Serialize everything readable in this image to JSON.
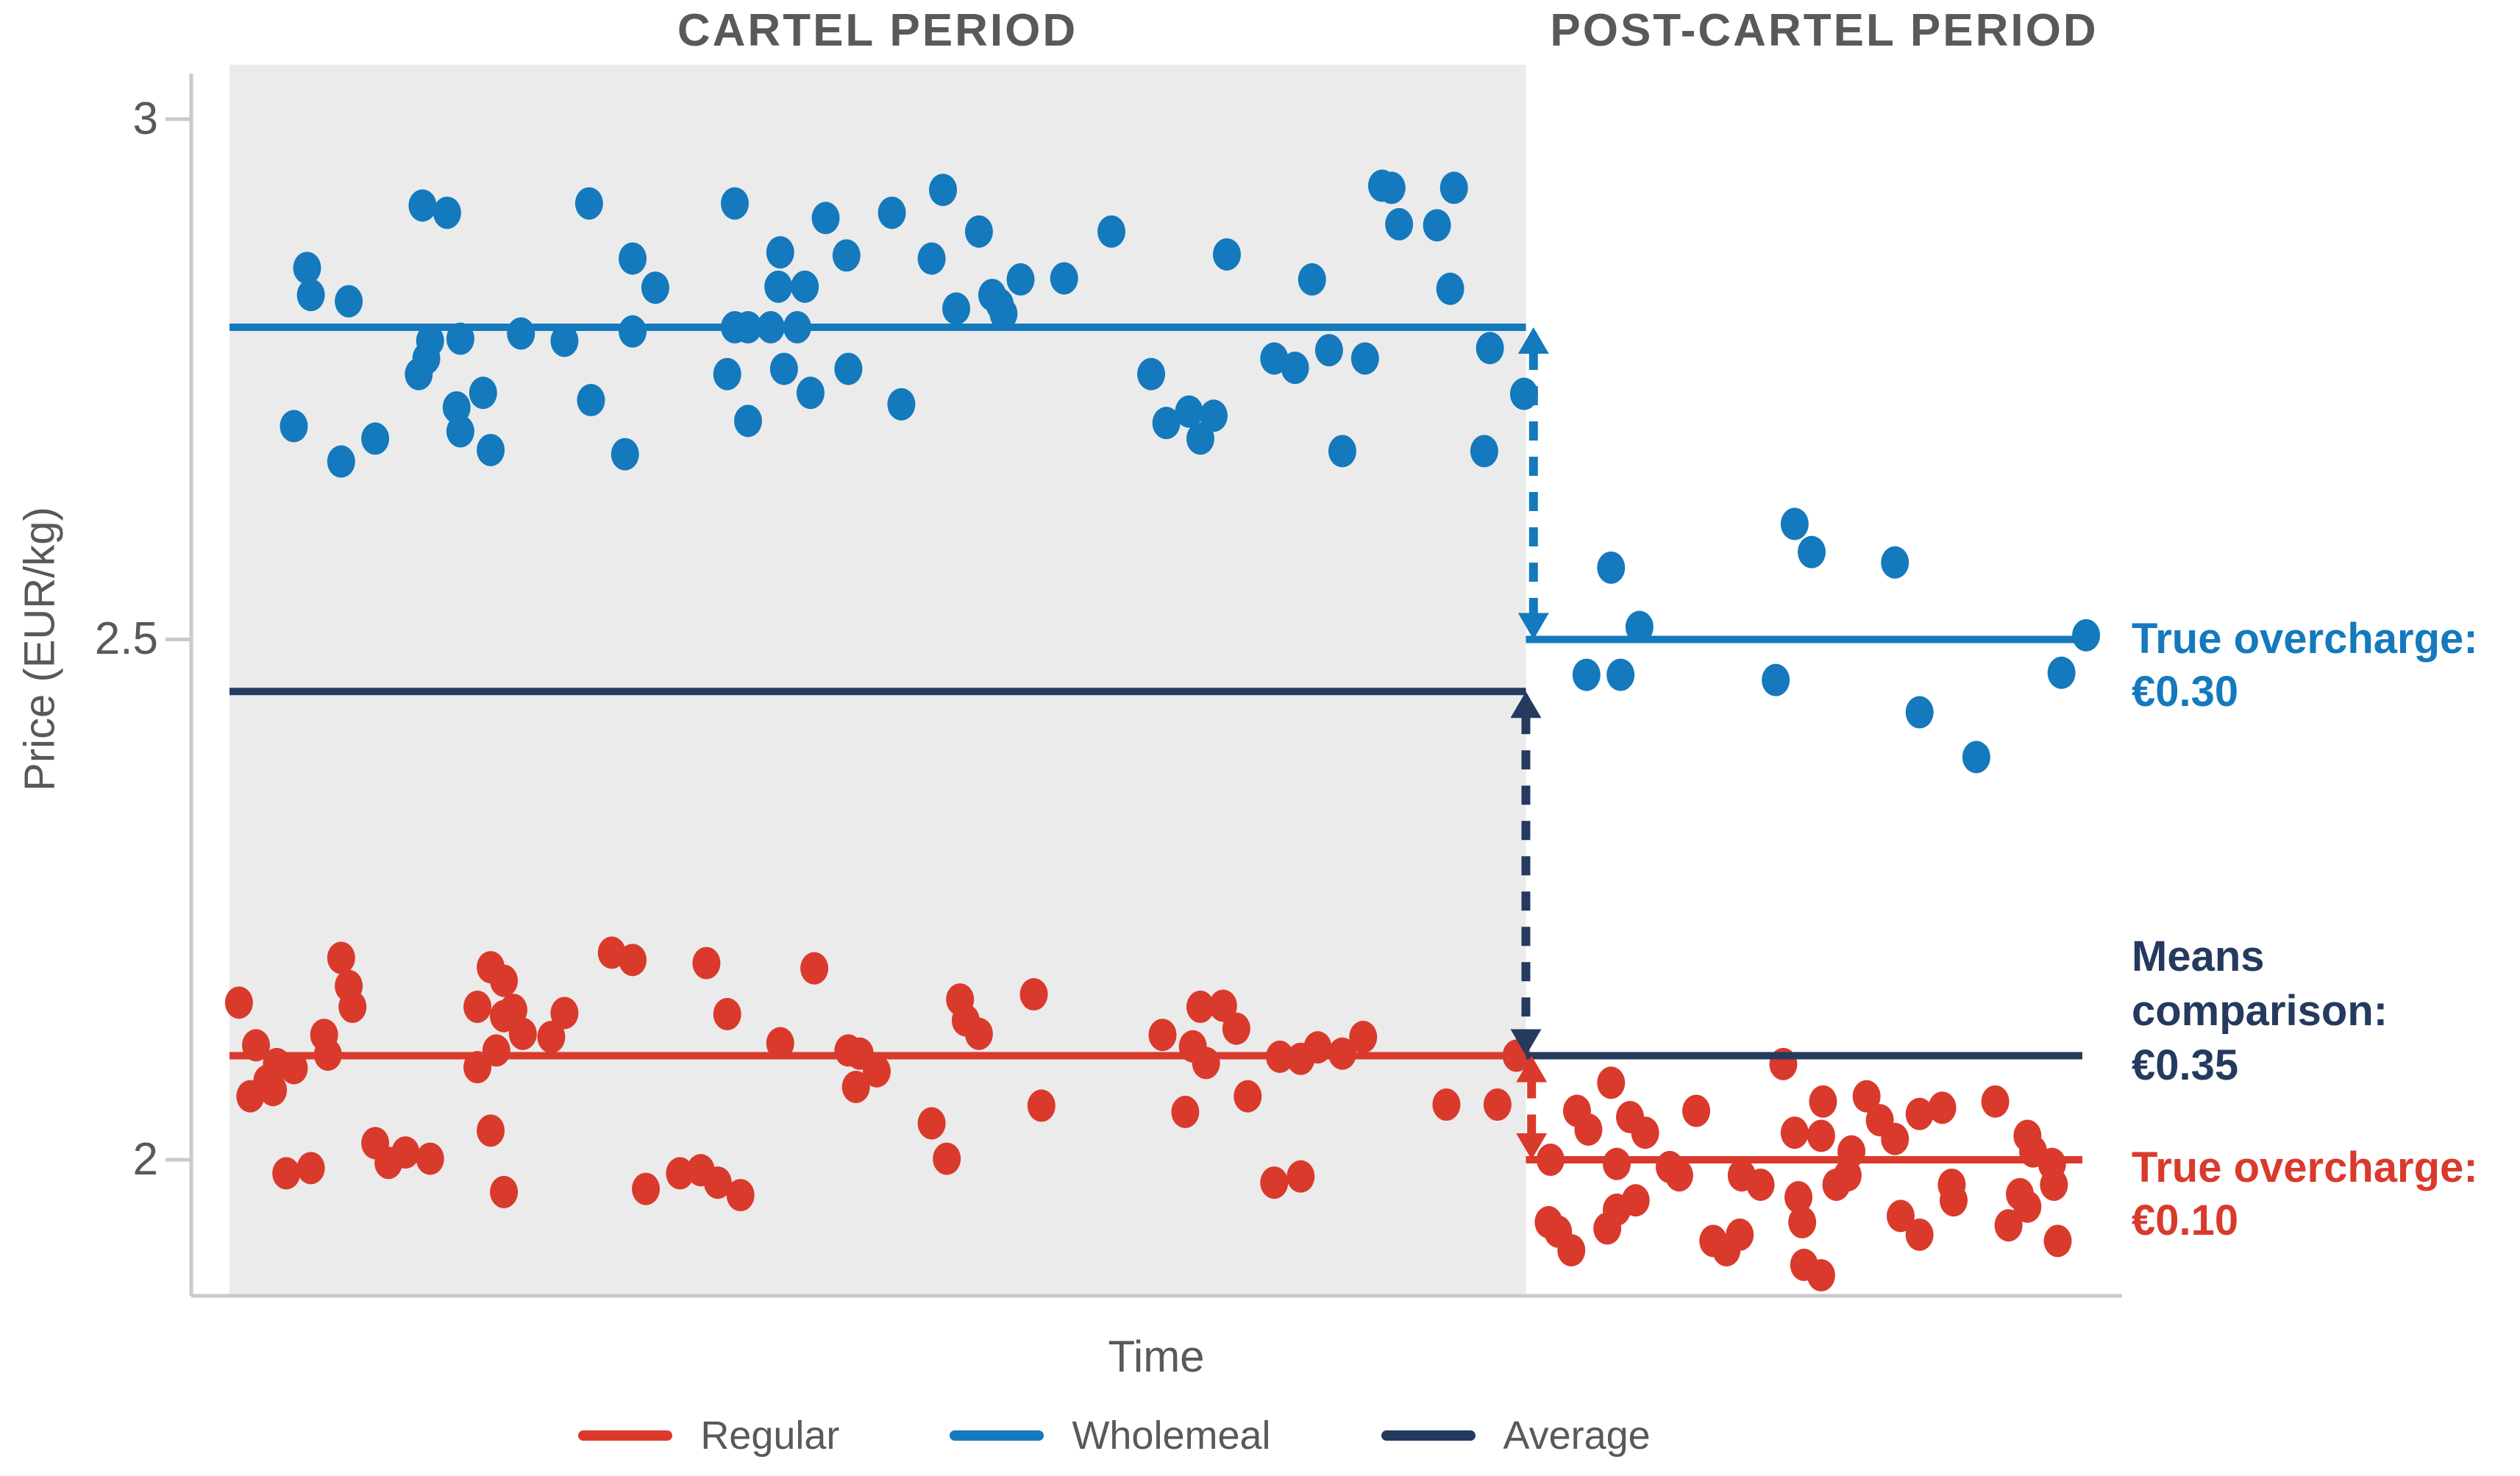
{
  "axes": {
    "x_label": "Time",
    "y_label": "Price (EUR/kg)"
  },
  "annotations": {
    "wholemeal": {
      "lines": [
        "True overcharge:",
        "€0.30"
      ],
      "color": "#1479bd"
    },
    "average": {
      "lines": [
        "Means",
        "comparison:",
        "€0.35"
      ],
      "color": "#243a5e"
    },
    "regular": {
      "lines": [
        "True overcharge:",
        "€0.10"
      ],
      "color": "#d93a2c"
    }
  },
  "legend": {
    "items": [
      {
        "label": "Regular",
        "color": "#d93a2c"
      },
      {
        "label": "Wholemeal",
        "color": "#1479bd"
      },
      {
        "label": "Average",
        "color": "#243a5e"
      }
    ]
  },
  "colors": {
    "regular": "#d93a2c",
    "wholemeal": "#1479bd",
    "average": "#243a5e",
    "plot_shading": "#ebebeb",
    "axis": "#c9cacb",
    "text_gray": "#58595b",
    "background": "#ffffff"
  },
  "chart_data": {
    "type": "scatter",
    "xlabel": "Time",
    "ylabel": "Price (EUR/kg)",
    "xlim": [
      0,
      100
    ],
    "ylim": [
      1.87,
      3.05
    ],
    "y_ticks": [
      3,
      2.5,
      2
    ],
    "y_tick_labels": [
      "3",
      "2.5",
      "2"
    ],
    "grid": false,
    "legend_position": "bottom",
    "regions": [
      {
        "name": "CARTEL PERIOD",
        "x_start": 0,
        "x_end": 68.5,
        "shaded": true
      },
      {
        "name": "POST-CARTEL PERIOD",
        "x_start": 68.5,
        "x_end": 100,
        "shaded": false
      }
    ],
    "series": [
      {
        "id": "wholemeal-cartel",
        "name": "Wholemeal",
        "period": "cartel",
        "color": "#1479bd",
        "mean": 2.8,
        "line_span": [
          0,
          68.5
        ],
        "points": [
          [
            10.2,
            2.917
          ],
          [
            11.5,
            2.91
          ],
          [
            19.0,
            2.919
          ],
          [
            26.7,
            2.919
          ],
          [
            31.5,
            2.905
          ],
          [
            4.1,
            2.857
          ],
          [
            21.3,
            2.866
          ],
          [
            22.5,
            2.838
          ],
          [
            29.1,
            2.872
          ],
          [
            29.0,
            2.839
          ],
          [
            30.4,
            2.839
          ],
          [
            32.6,
            2.869
          ],
          [
            4.3,
            2.831
          ],
          [
            6.3,
            2.825
          ],
          [
            26.7,
            2.8
          ],
          [
            27.4,
            2.8
          ],
          [
            28.6,
            2.8
          ],
          [
            30.0,
            2.8
          ],
          [
            10.6,
            2.787
          ],
          [
            12.2,
            2.789
          ],
          [
            15.4,
            2.794
          ],
          [
            17.7,
            2.787
          ],
          [
            21.3,
            2.796
          ],
          [
            10.4,
            2.77
          ],
          [
            10.0,
            2.755
          ],
          [
            13.4,
            2.737
          ],
          [
            12.0,
            2.723
          ],
          [
            12.2,
            2.7
          ],
          [
            3.4,
            2.705
          ],
          [
            7.7,
            2.693
          ],
          [
            5.9,
            2.671
          ],
          [
            13.8,
            2.682
          ],
          [
            19.1,
            2.73
          ],
          [
            20.9,
            2.678
          ],
          [
            26.3,
            2.755
          ],
          [
            27.4,
            2.71
          ],
          [
            29.3,
            2.76
          ],
          [
            30.7,
            2.737
          ],
          [
            32.7,
            2.76
          ],
          [
            37.7,
            2.932
          ],
          [
            35.0,
            2.91
          ],
          [
            39.6,
            2.892
          ],
          [
            37.1,
            2.866
          ],
          [
            46.6,
            2.892
          ],
          [
            41.8,
            2.846
          ],
          [
            44.1,
            2.847
          ],
          [
            40.3,
            2.831
          ],
          [
            38.4,
            2.818
          ],
          [
            40.7,
            2.822
          ],
          [
            40.9,
            2.813
          ],
          [
            52.7,
            2.87
          ],
          [
            57.2,
            2.846
          ],
          [
            60.9,
            2.936
          ],
          [
            61.4,
            2.934
          ],
          [
            64.7,
            2.934
          ],
          [
            61.8,
            2.899
          ],
          [
            63.8,
            2.898
          ],
          [
            64.5,
            2.837
          ],
          [
            55.2,
            2.77
          ],
          [
            56.3,
            2.761
          ],
          [
            58.1,
            2.778
          ],
          [
            60.0,
            2.77
          ],
          [
            66.6,
            2.78
          ],
          [
            68.4,
            2.736
          ],
          [
            48.7,
            2.755
          ],
          [
            35.5,
            2.726
          ],
          [
            49.5,
            2.708
          ],
          [
            50.7,
            2.719
          ],
          [
            51.3,
            2.693
          ],
          [
            52.0,
            2.715
          ],
          [
            58.8,
            2.681
          ],
          [
            66.3,
            2.681
          ]
        ]
      },
      {
        "id": "wholemeal-post",
        "name": "Wholemeal",
        "period": "post",
        "color": "#1479bd",
        "mean": 2.5,
        "line_span": [
          68.5,
          98.1
        ],
        "points": [
          [
            82.7,
            2.611
          ],
          [
            83.6,
            2.584
          ],
          [
            88.0,
            2.574
          ],
          [
            73.0,
            2.569
          ],
          [
            74.5,
            2.512
          ],
          [
            71.7,
            2.466
          ],
          [
            73.5,
            2.466
          ],
          [
            81.7,
            2.461
          ],
          [
            89.3,
            2.43
          ],
          [
            96.8,
            2.468
          ],
          [
            98.1,
            2.504
          ],
          [
            92.3,
            2.387
          ]
        ]
      },
      {
        "id": "regular-cartel",
        "name": "Regular",
        "period": "cartel",
        "color": "#d93a2c",
        "mean": 2.1,
        "line_span": [
          0,
          68.5
        ],
        "points": [
          [
            0.5,
            2.151
          ],
          [
            5.9,
            2.194
          ],
          [
            6.3,
            2.167
          ],
          [
            6.5,
            2.147
          ],
          [
            1.4,
            2.11
          ],
          [
            2.5,
            2.092
          ],
          [
            3.4,
            2.088
          ],
          [
            5.0,
            2.12
          ],
          [
            5.2,
            2.101
          ],
          [
            2.0,
            2.076
          ],
          [
            2.3,
            2.067
          ],
          [
            1.1,
            2.061
          ],
          [
            13.8,
            2.185
          ],
          [
            14.5,
            2.172
          ],
          [
            13.1,
            2.147
          ],
          [
            14.5,
            2.138
          ],
          [
            15.0,
            2.144
          ],
          [
            15.5,
            2.121
          ],
          [
            17.0,
            2.118
          ],
          [
            17.7,
            2.141
          ],
          [
            14.1,
            2.105
          ],
          [
            13.1,
            2.089
          ],
          [
            20.2,
            2.199
          ],
          [
            21.3,
            2.192
          ],
          [
            25.2,
            2.189
          ],
          [
            26.3,
            2.14
          ],
          [
            30.9,
            2.184
          ],
          [
            29.1,
            2.112
          ],
          [
            32.7,
            2.105
          ],
          [
            33.3,
            2.102
          ],
          [
            34.2,
            2.085
          ],
          [
            33.1,
            2.07
          ],
          [
            13.8,
            2.028
          ],
          [
            3.0,
            1.987
          ],
          [
            4.3,
            1.992
          ],
          [
            7.7,
            2.016
          ],
          [
            8.4,
            1.997
          ],
          [
            9.3,
            2.007
          ],
          [
            10.6,
            2.001
          ],
          [
            14.5,
            1.969
          ],
          [
            22.0,
            1.972
          ],
          [
            23.8,
            1.987
          ],
          [
            24.9,
            1.99
          ],
          [
            25.8,
            1.978
          ],
          [
            27.0,
            1.966
          ],
          [
            38.6,
            2.154
          ],
          [
            42.5,
            2.159
          ],
          [
            38.9,
            2.134
          ],
          [
            39.6,
            2.121
          ],
          [
            37.1,
            2.035
          ],
          [
            37.9,
            2.001
          ],
          [
            42.9,
            2.052
          ],
          [
            49.3,
            2.12
          ],
          [
            50.9,
            2.109
          ],
          [
            51.6,
            2.093
          ],
          [
            51.3,
            2.147
          ],
          [
            52.5,
            2.148
          ],
          [
            53.2,
            2.126
          ],
          [
            53.8,
            2.061
          ],
          [
            50.5,
            2.046
          ],
          [
            55.5,
            2.099
          ],
          [
            56.6,
            2.097
          ],
          [
            57.5,
            2.108
          ],
          [
            58.8,
            2.102
          ],
          [
            59.9,
            2.118
          ],
          [
            64.3,
            2.053
          ],
          [
            67.0,
            2.053
          ],
          [
            55.2,
            1.978
          ],
          [
            56.6,
            1.984
          ],
          [
            68.0,
            2.1
          ]
        ]
      },
      {
        "id": "regular-post",
        "name": "Regular",
        "period": "post",
        "color": "#d93a2c",
        "mean": 2.0,
        "line_span": [
          68.5,
          97.9
        ],
        "points": [
          [
            69.8,
            2.0
          ],
          [
            73.0,
            2.074
          ],
          [
            71.2,
            2.047
          ],
          [
            71.8,
            2.029
          ],
          [
            74.0,
            2.041
          ],
          [
            74.8,
            2.026
          ],
          [
            73.3,
            1.996
          ],
          [
            69.7,
            1.94
          ],
          [
            70.2,
            1.931
          ],
          [
            70.9,
            1.913
          ],
          [
            72.8,
            1.934
          ],
          [
            73.3,
            1.952
          ],
          [
            74.3,
            1.961
          ],
          [
            76.1,
            1.993
          ],
          [
            76.6,
            1.985
          ],
          [
            77.5,
            2.047
          ],
          [
            78.4,
            1.922
          ],
          [
            79.1,
            1.913
          ],
          [
            79.8,
            1.928
          ],
          [
            79.9,
            1.985
          ],
          [
            80.9,
            1.976
          ],
          [
            82.1,
            2.092
          ],
          [
            82.7,
            2.026
          ],
          [
            84.1,
            2.023
          ],
          [
            85.7,
            2.008
          ],
          [
            85.5,
            1.985
          ],
          [
            82.9,
            1.964
          ],
          [
            84.9,
            1.976
          ],
          [
            83.1,
            1.94
          ],
          [
            84.2,
            2.056
          ],
          [
            86.5,
            2.061
          ],
          [
            87.2,
            2.038
          ],
          [
            88.0,
            2.02
          ],
          [
            89.3,
            2.044
          ],
          [
            90.5,
            2.05
          ],
          [
            91.0,
            1.976
          ],
          [
            91.1,
            1.961
          ],
          [
            88.3,
            1.946
          ],
          [
            83.2,
            1.899
          ],
          [
            84.1,
            1.889
          ],
          [
            89.3,
            1.928
          ],
          [
            94.0,
            1.937
          ],
          [
            93.3,
            2.056
          ],
          [
            95.0,
            2.023
          ],
          [
            95.3,
            2.008
          ],
          [
            94.6,
            1.967
          ],
          [
            95.0,
            1.955
          ],
          [
            96.3,
            1.996
          ],
          [
            96.4,
            1.976
          ],
          [
            96.6,
            1.922
          ]
        ]
      },
      {
        "id": "average-cartel",
        "name": "Average",
        "period": "cartel",
        "color": "#243a5e",
        "mean": 2.45,
        "line_span": [
          0,
          68.5
        ],
        "points": []
      },
      {
        "id": "average-post",
        "name": "Average",
        "period": "post",
        "color": "#243a5e",
        "mean": 2.1,
        "line_span": [
          68.5,
          97.9
        ],
        "points": []
      }
    ],
    "arrows": [
      {
        "id": "wholemeal-overcharge",
        "color": "#1479bd",
        "x": 68.9,
        "from": 2.8,
        "to": 2.5,
        "annotation_key": "wholemeal"
      },
      {
        "id": "means-comparison",
        "color": "#243a5e",
        "x": 68.5,
        "from": 2.45,
        "to": 2.1,
        "annotation_key": "average"
      },
      {
        "id": "regular-overcharge",
        "color": "#d93a2c",
        "x": 68.8,
        "from": 2.1,
        "to": 2.0,
        "annotation_key": "regular"
      }
    ]
  }
}
